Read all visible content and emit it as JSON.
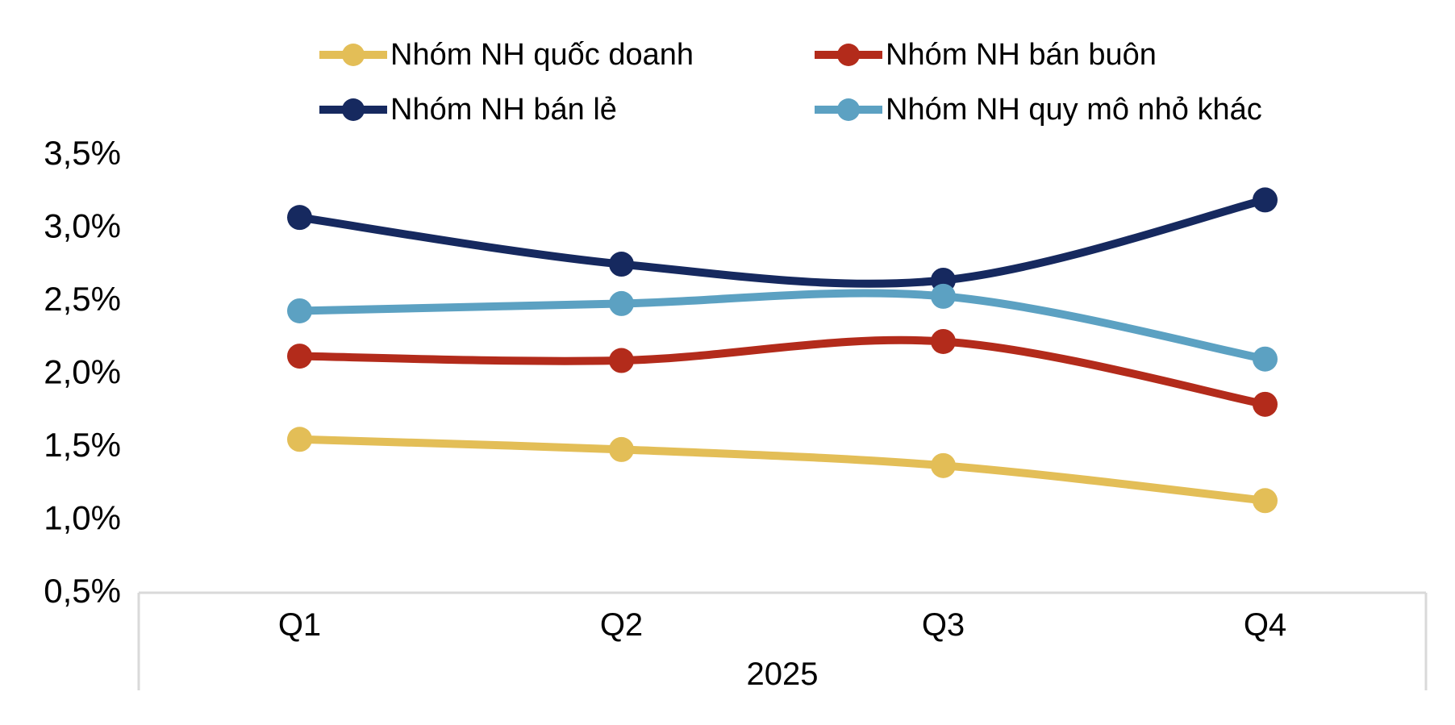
{
  "chart_data": {
    "type": "line",
    "title": "",
    "xlabel": "",
    "ylabel": "",
    "categories": [
      "Q1",
      "Q2",
      "Q3",
      "Q4"
    ],
    "x_group_label": "2025",
    "series": [
      {
        "name": "Nhóm NH quốc doanh",
        "color": "#E3BE57",
        "values": [
          1.54,
          1.47,
          1.36,
          1.12
        ]
      },
      {
        "name": "Nhóm NH bán buôn",
        "color": "#B32B1B",
        "values": [
          2.11,
          2.08,
          2.21,
          1.78
        ]
      },
      {
        "name": "Nhóm NH bán lẻ",
        "color": "#16295F",
        "values": [
          3.06,
          2.74,
          2.63,
          3.18
        ]
      },
      {
        "name": "Nhóm NH quy mô nhỏ khác",
        "color": "#5CA1C2",
        "values": [
          2.42,
          2.47,
          2.52,
          2.09
        ]
      }
    ],
    "ylim": [
      0.5,
      3.5
    ],
    "y_ticks": [
      {
        "label": "3,5%",
        "value": 3.5
      },
      {
        "label": "3,0%",
        "value": 3.0
      },
      {
        "label": "2,5%",
        "value": 2.5
      },
      {
        "label": "2,0%",
        "value": 2.0
      },
      {
        "label": "1,5%",
        "value": 1.5
      },
      {
        "label": "1,0%",
        "value": 1.0
      },
      {
        "label": "0,5%",
        "value": 0.5
      }
    ],
    "grid": false,
    "smooth_lines": true,
    "legend_position": "top",
    "axis_box_color": "#D9D9D9",
    "text_color": "#000000"
  },
  "legend": {
    "items": [
      {
        "label": "Nhóm NH quốc doanh"
      },
      {
        "label": "Nhóm NH bán buôn"
      },
      {
        "label": "Nhóm NH bán lẻ"
      },
      {
        "label": "Nhóm NH quy mô nhỏ khác"
      }
    ]
  }
}
